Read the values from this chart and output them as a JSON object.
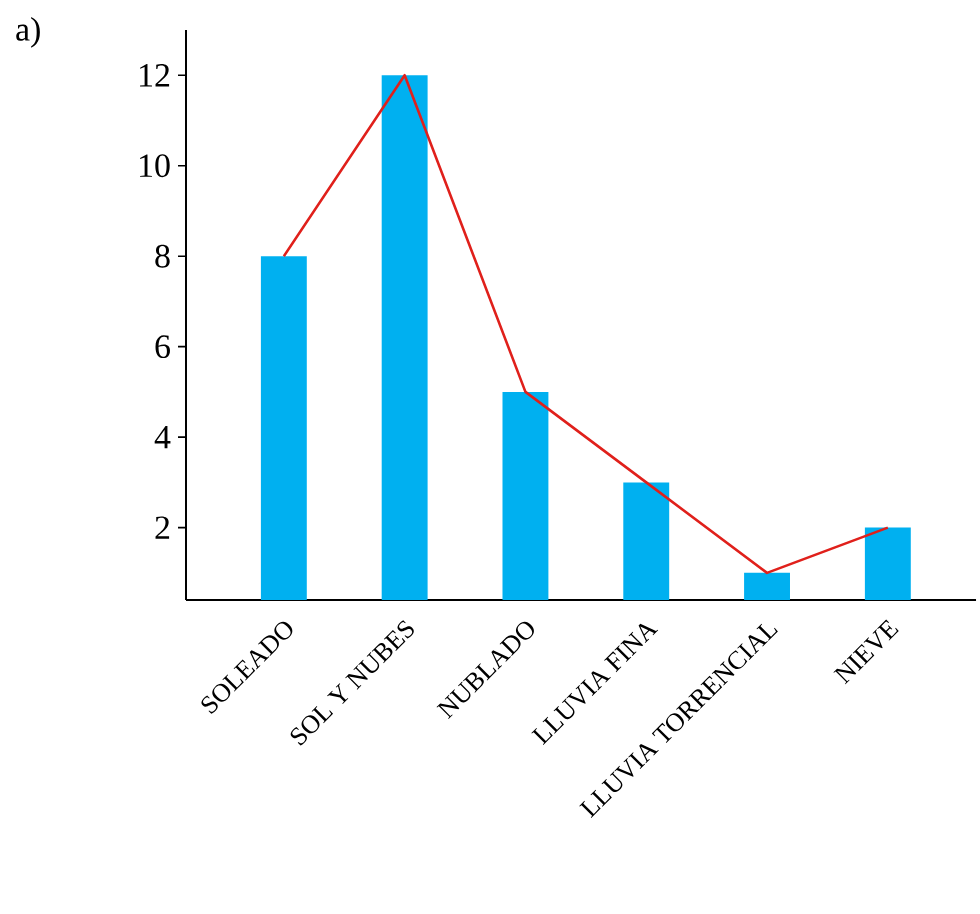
{
  "chart_data": {
    "type": "bar",
    "categories": [
      "SOLEADO",
      "SOL Y NUBES",
      "NUBLADO",
      "LLUVIA FINA",
      "LLUVIA TORRENCIAL",
      "NIEVE"
    ],
    "series": [
      {
        "color": "#00b0f0",
        "values": [
          8,
          12,
          5,
          3,
          1,
          2
        ]
      },
      {
        "type": "line",
        "color": "#e0201b",
        "values": [
          8,
          12,
          5,
          3,
          1,
          2
        ],
        "marker": "none",
        "line_style": "solid"
      }
    ],
    "ylim": [
      0.4,
      13
    ],
    "yticks": [
      2,
      4,
      6,
      8,
      10,
      12
    ],
    "grid": false,
    "annotations": [
      "a)"
    ]
  }
}
